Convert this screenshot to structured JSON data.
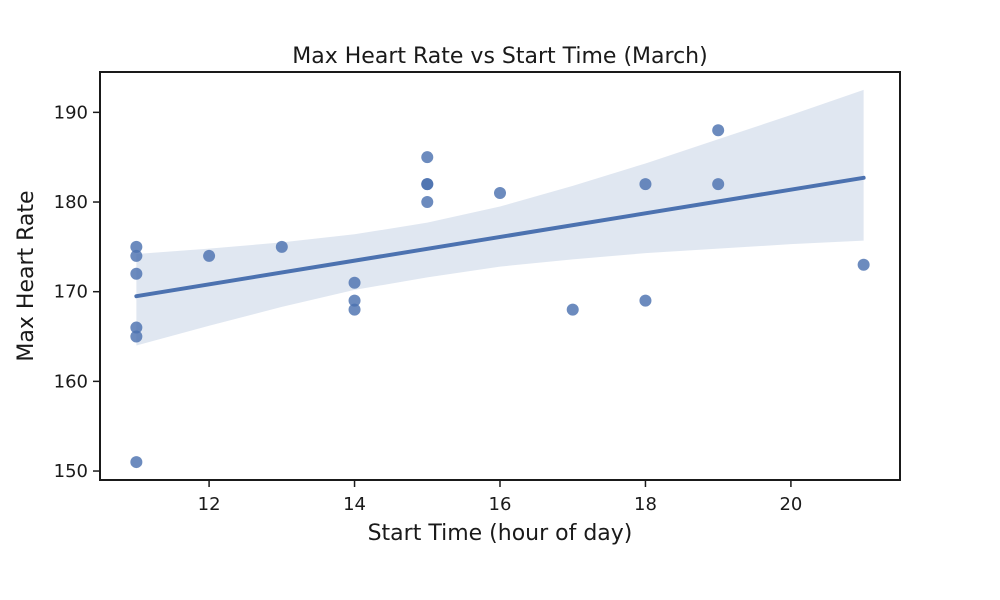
{
  "chart_data": {
    "type": "scatter",
    "title": "Max Heart Rate vs Start Time (March)",
    "xlabel": "Start Time (hour of day)",
    "ylabel": "Max Heart Rate",
    "xlim": [
      10.5,
      21.5
    ],
    "ylim": [
      149,
      194.5
    ],
    "xticks": [
      12,
      14,
      16,
      18,
      20
    ],
    "yticks": [
      150,
      160,
      170,
      180,
      190
    ],
    "grid": false,
    "colors": {
      "points": "#4c72b0",
      "fit_line": "#4c72b0",
      "confidence_band": "#dde4f0",
      "axes": "#1a1a1a"
    },
    "points": [
      {
        "x": 11,
        "y": 175
      },
      {
        "x": 11,
        "y": 174
      },
      {
        "x": 11,
        "y": 172
      },
      {
        "x": 11,
        "y": 166
      },
      {
        "x": 11,
        "y": 165
      },
      {
        "x": 11,
        "y": 151
      },
      {
        "x": 12,
        "y": 174
      },
      {
        "x": 13,
        "y": 175
      },
      {
        "x": 14,
        "y": 171
      },
      {
        "x": 14,
        "y": 169
      },
      {
        "x": 14,
        "y": 168
      },
      {
        "x": 15,
        "y": 185
      },
      {
        "x": 15,
        "y": 182
      },
      {
        "x": 15,
        "y": 182
      },
      {
        "x": 15,
        "y": 180
      },
      {
        "x": 16,
        "y": 181
      },
      {
        "x": 17,
        "y": 168
      },
      {
        "x": 18,
        "y": 182
      },
      {
        "x": 18,
        "y": 169
      },
      {
        "x": 19,
        "y": 188
      },
      {
        "x": 19,
        "y": 182
      },
      {
        "x": 21,
        "y": 173
      }
    ],
    "regression": {
      "x": [
        11,
        21
      ],
      "y": [
        169.5,
        182.7
      ]
    },
    "confidence_band": [
      {
        "x": 11,
        "lower": 164.0,
        "upper": 174.2
      },
      {
        "x": 12,
        "lower": 166.2,
        "upper": 174.8
      },
      {
        "x": 13,
        "lower": 168.3,
        "upper": 175.5
      },
      {
        "x": 14,
        "lower": 170.2,
        "upper": 176.4
      },
      {
        "x": 15,
        "lower": 171.6,
        "upper": 177.7
      },
      {
        "x": 16,
        "lower": 172.8,
        "upper": 179.5
      },
      {
        "x": 17,
        "lower": 173.6,
        "upper": 181.8
      },
      {
        "x": 18,
        "lower": 174.3,
        "upper": 184.3
      },
      {
        "x": 19,
        "lower": 174.8,
        "upper": 187.0
      },
      {
        "x": 20,
        "lower": 175.3,
        "upper": 189.7
      },
      {
        "x": 21,
        "lower": 175.7,
        "upper": 192.5
      }
    ]
  }
}
